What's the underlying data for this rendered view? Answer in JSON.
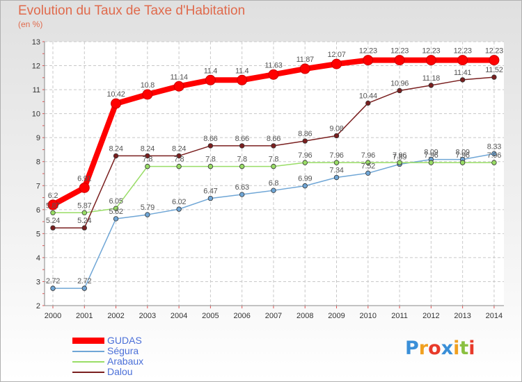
{
  "title": "Evolution du Taux de Taxe d'Habitation",
  "subtitle": "(en %)",
  "logo": "Proxiti",
  "chart_data": {
    "type": "line",
    "x": [
      "2000",
      "2001",
      "2002",
      "2003",
      "2004",
      "2005",
      "2006",
      "2007",
      "2008",
      "2009",
      "2010",
      "2011",
      "2012",
      "2013",
      "2014"
    ],
    "ylim": [
      2,
      13
    ],
    "yticks": [
      2,
      3,
      4,
      5,
      6,
      7,
      8,
      9,
      10,
      11,
      12,
      13
    ],
    "grid": true,
    "legend_position": "bottom-left",
    "series": [
      {
        "name": "GUDAS",
        "color": "#ff0000",
        "values": [
          6.2,
          6.91,
          10.42,
          10.8,
          11.14,
          11.4,
          11.4,
          11.63,
          11.87,
          12.07,
          12.23,
          12.23,
          12.23,
          12.23,
          12.23
        ],
        "labels": [
          "6.2",
          "6.91",
          "10.42",
          "10.8",
          "11.14",
          "11.4",
          "11.4",
          "11.63",
          "11.87",
          "12.07",
          "12.23",
          "12.23",
          "12.23",
          "12.23",
          "12.23"
        ]
      },
      {
        "name": "Ségura",
        "color": "#6fa6d6",
        "values": [
          2.72,
          2.72,
          5.62,
          5.79,
          6.02,
          6.47,
          6.63,
          6.8,
          6.99,
          7.34,
          7.52,
          7.89,
          8.09,
          8.09,
          8.33
        ],
        "labels": [
          "2.72",
          "2.72",
          "5.62",
          "5.79",
          "6.02",
          "6.47",
          "6.63",
          "6.8",
          "6.99",
          "7.34",
          "7.52",
          "7.89",
          "8.09",
          "8.09",
          "8.33"
        ]
      },
      {
        "name": "Arabaux",
        "color": "#99dd66",
        "values": [
          5.87,
          5.87,
          6.05,
          7.8,
          7.8,
          7.8,
          7.8,
          7.8,
          7.96,
          7.96,
          7.96,
          7.96,
          7.96,
          7.96,
          7.96
        ],
        "labels": [
          "5.87",
          "5.87",
          "6.05",
          "7.8",
          "7.8",
          "7.8",
          "7.8",
          "7.8",
          "7.96",
          "7.96",
          "7.96",
          "7.96",
          "7.96",
          "7.96",
          "7.96"
        ]
      },
      {
        "name": "Dalou",
        "color": "#7a1f1f",
        "values": [
          5.24,
          5.24,
          8.24,
          8.24,
          8.24,
          8.66,
          8.66,
          8.66,
          8.86,
          9.08,
          10.44,
          10.96,
          11.18,
          11.41,
          11.52
        ],
        "labels": [
          "5.24",
          "5.24",
          "8.24",
          "8.24",
          "8.24",
          "8.66",
          "8.66",
          "8.66",
          "8.86",
          "9.08",
          "10.44",
          "10.96",
          "11.18",
          "11.41",
          "11.52"
        ]
      }
    ]
  }
}
